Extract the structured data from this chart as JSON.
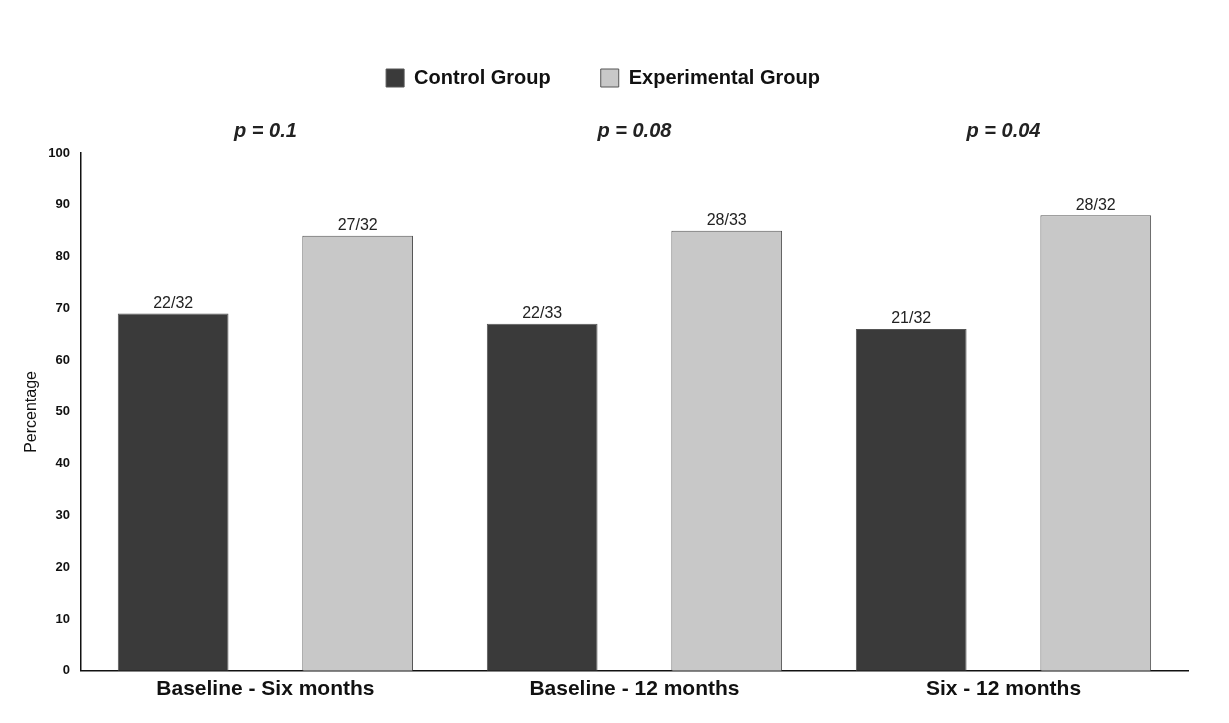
{
  "chart_data": {
    "type": "bar",
    "ylabel": "Percentage",
    "categories": [
      "Baseline - Six months",
      "Baseline - 12 months",
      "Six - 12 months"
    ],
    "series": [
      {
        "name": "Control Group",
        "color": "#3a3a3a",
        "values": [
          69,
          67,
          66
        ],
        "value_labels": [
          "22/32",
          "22/33",
          "21/32"
        ]
      },
      {
        "name": "Experimental Group",
        "color": "#c8c8c8",
        "values": [
          84,
          85,
          88
        ],
        "value_labels": [
          "27/32",
          "28/33",
          "28/32"
        ]
      }
    ],
    "annotations": [
      "p = 0.1",
      "p = 0.08",
      "p = 0.04"
    ],
    "ylim": [
      0,
      100
    ],
    "yticks": [
      0,
      10,
      20,
      30,
      40,
      50,
      60,
      70,
      80,
      90,
      100
    ],
    "grid": false,
    "legend": "top"
  }
}
